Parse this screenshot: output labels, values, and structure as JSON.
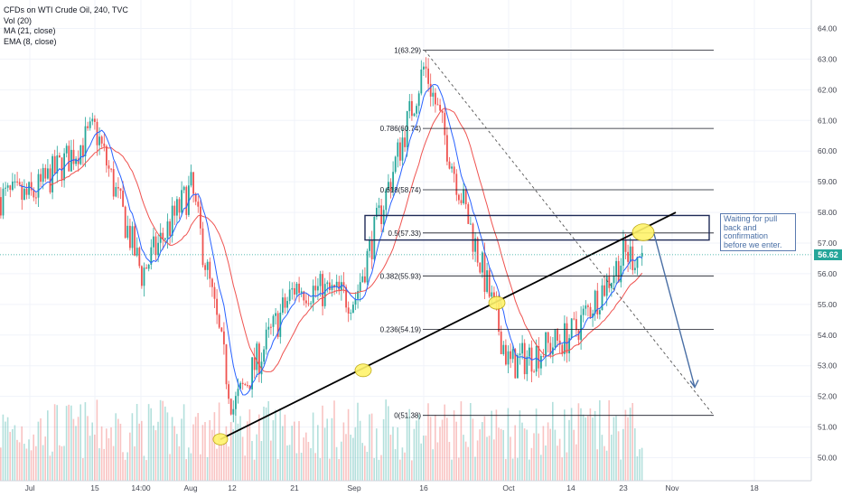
{
  "legend": {
    "title": "CFDs on WTI Crude Oil, 240, TVC",
    "vol": "Vol (20)",
    "ma": "MA (21, close)",
    "ema": "EMA (8, close)"
  },
  "annotation": {
    "text": "Waiting for pull back and confirmation before we enter."
  },
  "last_price": {
    "value": 56.62,
    "label": "56.62",
    "color": "#26a69a"
  },
  "colors": {
    "up": "#26a69a",
    "down": "#ef5350",
    "ma": "#ef5350",
    "ema": "#2962ff",
    "fib": "#131722",
    "trendline": "#000000",
    "highlight": "#fff36b",
    "arrow": "#4a6fa5",
    "grid": "#f0f3fa"
  },
  "chart_data": {
    "type": "candlestick",
    "y_axis": {
      "min": 50,
      "max": 64,
      "ticks": [
        "50.00",
        "51.00",
        "52.00",
        "53.00",
        "54.00",
        "55.00",
        "56.00",
        "57.00",
        "58.00",
        "59.00",
        "60.00",
        "61.00",
        "62.00",
        "63.00",
        "64.00"
      ]
    },
    "x_axis": {
      "ticks": [
        "Jul",
        "15",
        "14:00",
        "Aug",
        "12",
        "21",
        "Sep",
        "16",
        "Oct",
        "14",
        "23",
        "Nov",
        "18"
      ]
    },
    "fibonacci": [
      {
        "label": "1(63.29)",
        "level": 63.29
      },
      {
        "label": "0.786(60.74)",
        "level": 60.74
      },
      {
        "label": "0.618(58.74)",
        "level": 58.74
      },
      {
        "label": "0.5(57.33)",
        "level": 57.33
      },
      {
        "label": "0.382(55.93)",
        "level": 55.93
      },
      {
        "label": "0.236(54.19)",
        "level": 54.19
      },
      {
        "label": "0(51.38)",
        "level": 51.38
      }
    ],
    "price_path": [
      [
        "Jul",
        58.5
      ],
      [
        "15",
        60.7
      ],
      [
        "14:00",
        56.0
      ],
      [
        "Aug",
        58.8
      ],
      [
        "12",
        51.6
      ],
      [
        "21",
        55.6
      ],
      [
        "Sep",
        55.2
      ],
      [
        "16",
        62.8
      ],
      [
        "Oct",
        53.0
      ],
      [
        "14",
        54.0
      ],
      [
        "23",
        56.6
      ]
    ],
    "trendline": {
      "from": [
        "Aug",
        50.6
      ],
      "to": [
        "Nov",
        58.0
      ]
    },
    "projection": {
      "from": [
        "23",
        57.3
      ],
      "to": [
        "Nov",
        52.3
      ]
    }
  }
}
